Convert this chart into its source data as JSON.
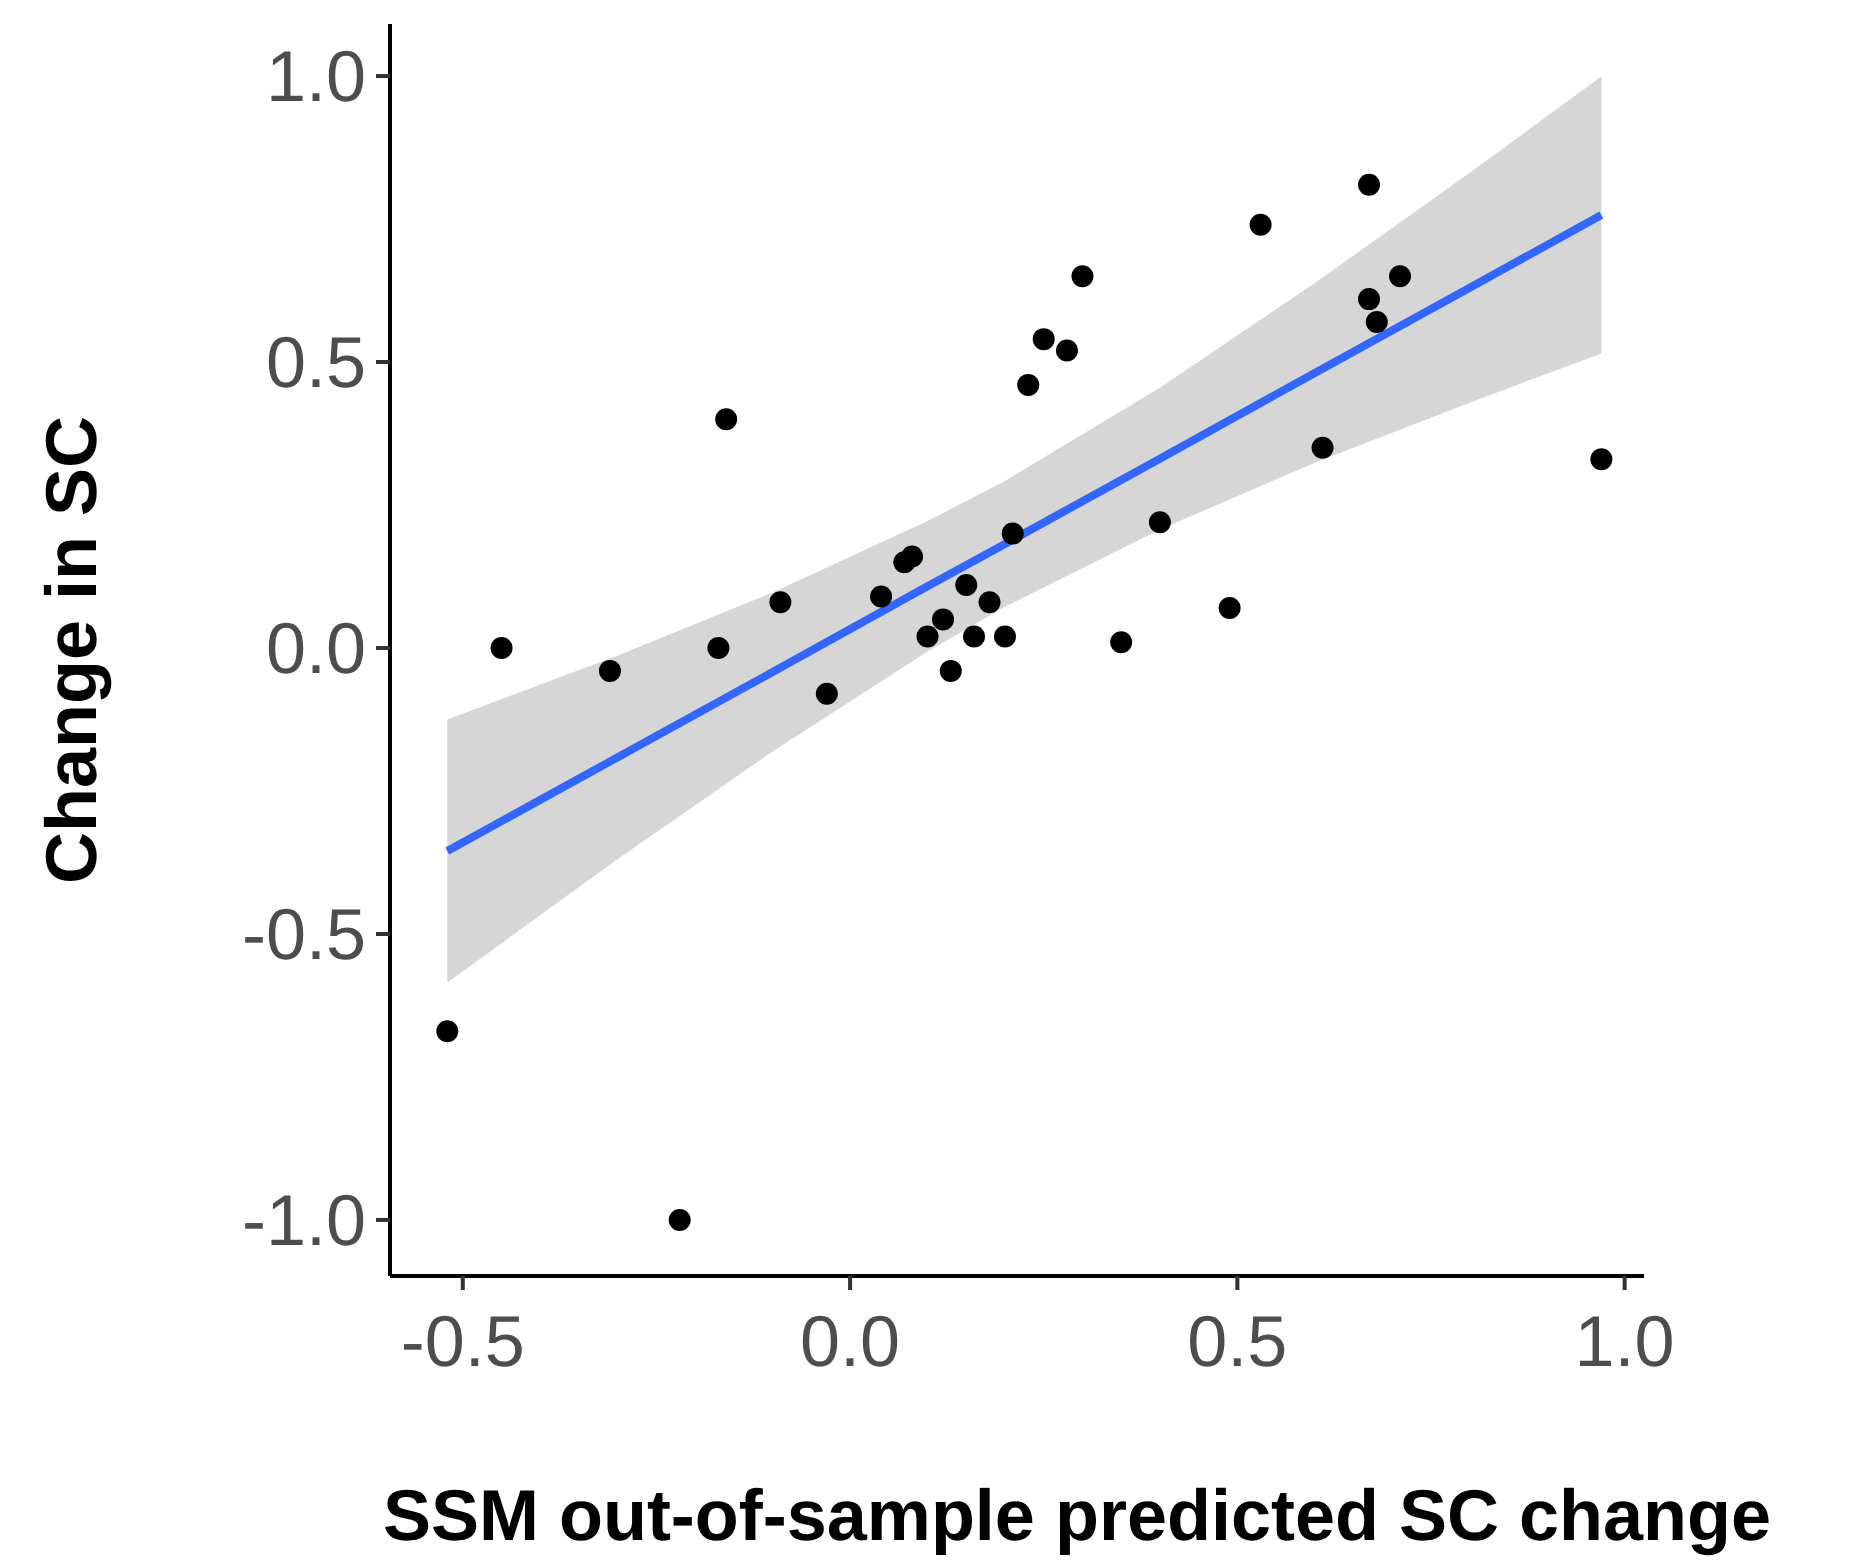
{
  "chart_data": {
    "type": "scatter",
    "xlabel": "SSM out-of-sample predicted SC change",
    "ylabel": "Change in SC",
    "xlim": [
      -0.594,
      1.025
    ],
    "ylim": [
      -1.098,
      1.091
    ],
    "xticks": [
      -0.5,
      {
        "value": 0,
        "label": "0.0"
      },
      0.5,
      {
        "value": 1,
        "label": "1.0"
      }
    ],
    "yticks": [
      {
        "value": -1,
        "label": "-1.0"
      },
      -0.5,
      {
        "value": 0,
        "label": "0.0"
      },
      0.5,
      {
        "value": 1,
        "label": "1.0"
      }
    ],
    "grid": false,
    "marker": "circle",
    "series": [
      {
        "type": "line",
        "color": "#3366ff",
        "line_style": "solid",
        "marker": "none",
        "x": [
          -0.52,
          -0.3,
          -0.1,
          0.1,
          0.2,
          0.4,
          0.6,
          0.8,
          0.97
        ],
        "values": [
          -0.355,
          -0.191,
          -0.042,
          0.108,
          0.182,
          0.331,
          0.481,
          0.63,
          0.757
        ],
        "lower": [
          -0.585,
          -0.369,
          -0.181,
          -0.006,
          0.072,
          0.207,
          0.324,
          0.429,
          0.515
        ],
        "upper": [
          -0.125,
          -0.013,
          0.097,
          0.222,
          0.292,
          0.455,
          0.638,
          0.831,
          0.999
        ]
      },
      {
        "color": "#000000",
        "x": [
          -0.52,
          -0.45,
          -0.31,
          -0.22,
          -0.16,
          -0.17,
          -0.09,
          -0.03,
          0.04,
          0.07,
          0.08,
          0.1,
          0.12,
          0.13,
          0.15,
          0.16,
          0.18,
          0.2,
          0.21,
          0.23,
          0.25,
          0.28,
          0.3,
          0.35,
          0.4,
          0.49,
          0.53,
          0.61,
          0.67,
          0.68,
          0.71,
          0.67,
          0.97
        ],
        "values": [
          -0.67,
          0.0,
          -0.04,
          -1.0,
          0.4,
          0.0,
          0.08,
          -0.08,
          0.09,
          0.15,
          0.16,
          0.02,
          0.05,
          -0.04,
          0.11,
          0.02,
          0.08,
          0.02,
          0.2,
          0.46,
          0.54,
          0.52,
          0.65,
          0.01,
          0.22,
          0.07,
          0.74,
          0.35,
          0.61,
          0.57,
          0.65,
          0.81,
          0.33
        ]
      }
    ]
  }
}
